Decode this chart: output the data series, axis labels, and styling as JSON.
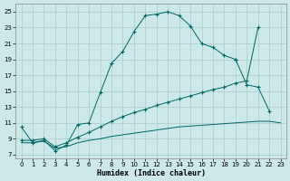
{
  "xlabel": "Humidex (Indice chaleur)",
  "background_color": "#cce8e8",
  "grid_color": "#aacccc",
  "line_color": "#006666",
  "xlim": [
    -0.5,
    23.5
  ],
  "ylim": [
    6.5,
    26.0
  ],
  "yticks": [
    7,
    9,
    11,
    13,
    15,
    17,
    19,
    21,
    23,
    25
  ],
  "xticks": [
    0,
    1,
    2,
    3,
    4,
    5,
    6,
    7,
    8,
    9,
    10,
    11,
    12,
    13,
    14,
    15,
    16,
    17,
    18,
    19,
    20,
    21,
    22,
    23
  ],
  "series": [
    {
      "x": [
        0,
        1,
        2,
        3,
        4,
        5,
        6,
        7,
        8,
        9,
        10,
        11,
        12,
        13,
        14,
        15,
        16,
        17,
        18,
        19
      ],
      "y": [
        10.5,
        8.5,
        8.8,
        7.5,
        8.2,
        10.8,
        11.0,
        14.8,
        18.5,
        20.0,
        22.5,
        24.5,
        24.7,
        25.0,
        24.5,
        23.2,
        21.0,
        20.5,
        19.5,
        19.0
      ],
      "marker": true
    },
    {
      "x": [
        19,
        20,
        21,
        22
      ],
      "y": [
        19.0,
        15.8,
        15.5,
        12.5
      ],
      "marker": true
    },
    {
      "x": [
        0,
        1,
        2,
        3,
        4,
        5,
        6,
        7,
        8,
        9,
        10,
        11,
        12,
        13,
        14,
        15,
        16,
        17,
        18,
        19,
        20,
        21,
        22,
        23
      ],
      "y": [
        8.8,
        8.8,
        9.0,
        8.0,
        8.5,
        9.2,
        9.8,
        10.5,
        11.2,
        11.8,
        12.3,
        12.7,
        13.2,
        13.6,
        14.0,
        14.4,
        14.8,
        15.2,
        15.5,
        16.0,
        16.3,
        23,
        null,
        null
      ],
      "marker": true
    },
    {
      "x": [
        0,
        1,
        2,
        3,
        4,
        5,
        6,
        7,
        8,
        9,
        10,
        11,
        12,
        13,
        14,
        15,
        16,
        17,
        18,
        19,
        20,
        21,
        22,
        23
      ],
      "y": [
        8.5,
        8.5,
        8.7,
        7.8,
        8.0,
        8.5,
        8.8,
        9.0,
        9.3,
        9.5,
        9.7,
        9.9,
        10.1,
        10.3,
        10.5,
        10.6,
        10.7,
        10.8,
        10.9,
        11.0,
        11.1,
        11.2,
        11.2,
        11.0
      ],
      "marker": false
    }
  ]
}
